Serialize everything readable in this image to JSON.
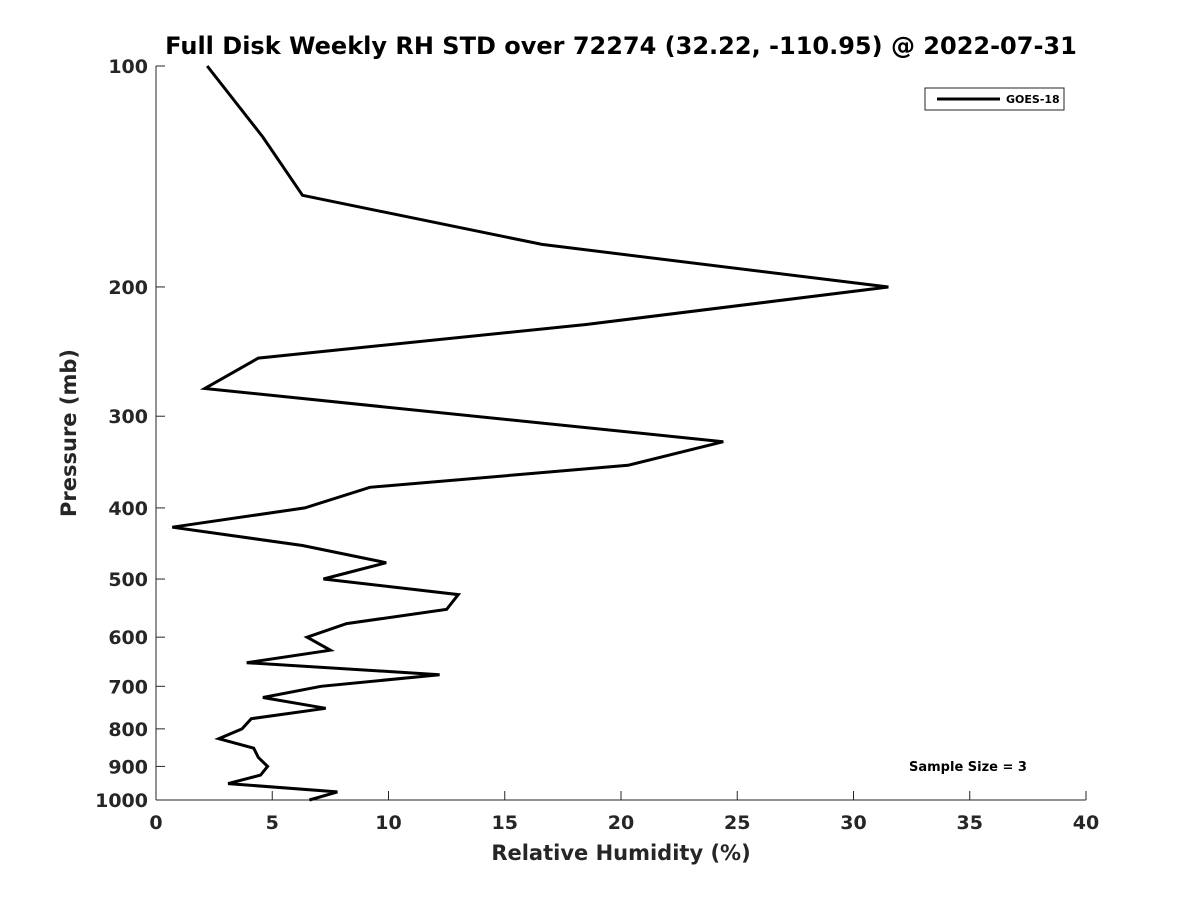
{
  "chart_data": {
    "type": "line",
    "title": "Full Disk Weekly RH STD over 72274 (32.22, -110.95) @ 2022-07-31",
    "xlabel": "Relative Humidity (%)",
    "ylabel": "Pressure (mb)",
    "xlim": [
      0,
      40
    ],
    "ylim": [
      100,
      1000
    ],
    "y_scale": "log",
    "y_reversed": true,
    "x_ticks": [
      "0",
      "5",
      "10",
      "15",
      "20",
      "25",
      "30",
      "35",
      "40"
    ],
    "y_ticks": [
      "100",
      "200",
      "300",
      "400",
      "500",
      "600",
      "700",
      "800",
      "900",
      "1000"
    ],
    "grid": false,
    "legend_position": "top-right",
    "annotation": "Sample Size = 3",
    "series": [
      {
        "name": "GOES-18",
        "color": "#000000",
        "x": [
          2.2,
          4.6,
          6.3,
          16.6,
          31.5,
          18.5,
          4.4,
          2.1,
          24.4,
          20.3,
          9.2,
          6.4,
          0.7,
          6.3,
          9.9,
          7.2,
          13.0,
          12.5,
          8.2,
          6.5,
          7.5,
          3.9,
          12.2,
          7.1,
          4.6,
          7.3,
          4.1,
          3.7,
          2.7,
          4.2,
          4.4,
          4.8,
          4.5,
          3.1,
          7.8,
          6.6
        ],
        "y": [
          100,
          125,
          150,
          175,
          200,
          225,
          250,
          275,
          325,
          350,
          375,
          400,
          425,
          450,
          475,
          500,
          525,
          550,
          575,
          600,
          625,
          650,
          675,
          700,
          725,
          750,
          775,
          800,
          825,
          850,
          875,
          900,
          925,
          950,
          975,
          1000
        ]
      }
    ]
  }
}
